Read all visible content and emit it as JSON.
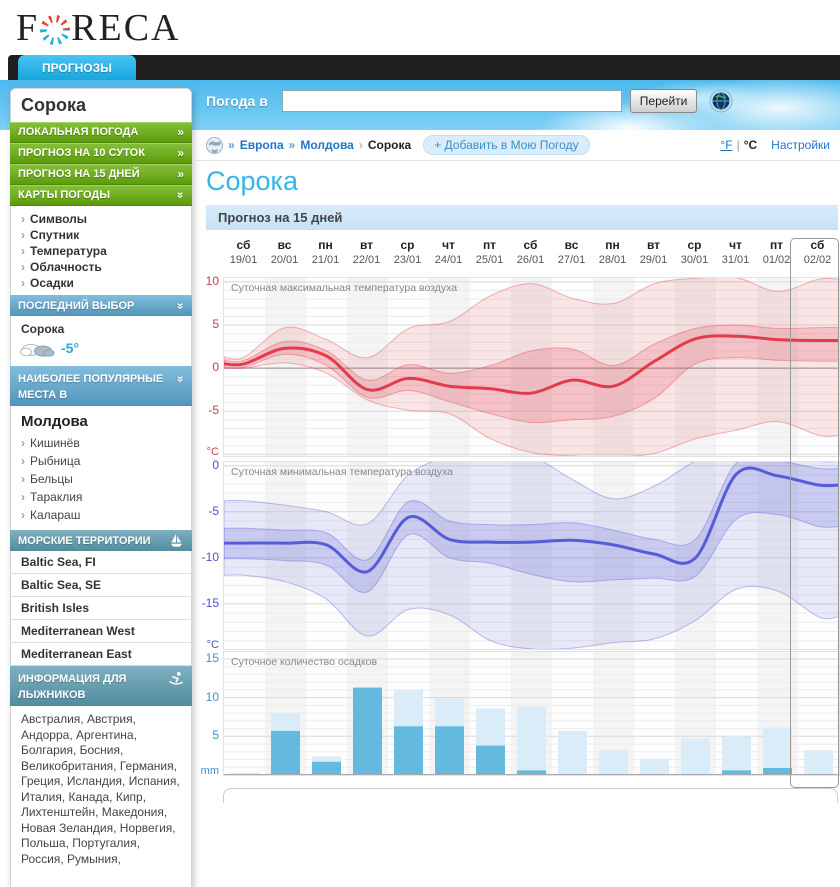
{
  "brand": {
    "logo_pre": "F",
    "logo_post": "RECA"
  },
  "nav": {
    "tab": "ПРОГНОЗЫ"
  },
  "search": {
    "label": "Погода в",
    "value": "",
    "button": "Перейти"
  },
  "breadcrumb": {
    "links": [
      "Европа",
      "Молдова"
    ],
    "current": "Сорока",
    "add_button": "+ Добавить в Мою Погоду"
  },
  "units": {
    "fahrenheit": "°F",
    "divider": "|",
    "celsius": "°C",
    "settings": "Настройки"
  },
  "page": {
    "title": "Сорока",
    "section": "Прогноз на 15 дней"
  },
  "days": {
    "names": [
      "сб",
      "вс",
      "пн",
      "вт",
      "ср",
      "чт",
      "пт",
      "сб",
      "вс",
      "пн",
      "вт",
      "ср",
      "чт",
      "пт",
      "сб"
    ],
    "dates": [
      "19/01",
      "20/01",
      "21/01",
      "22/01",
      "23/01",
      "24/01",
      "25/01",
      "26/01",
      "27/01",
      "28/01",
      "29/01",
      "30/01",
      "31/01",
      "01/02",
      "02/02"
    ]
  },
  "sidebar": {
    "city": "Сорока",
    "menu": [
      {
        "label": "ЛОКАЛЬНАЯ ПОГОДА",
        "state": "collapsed"
      },
      {
        "label": "ПРОГНОЗ НА 10 СУТОК",
        "state": "collapsed"
      },
      {
        "label": "ПРОГНОЗ НА 15 ДНЕЙ",
        "state": "collapsed"
      },
      {
        "label": "КАРТЫ ПОГОДЫ",
        "state": "expanded"
      }
    ],
    "map_links": [
      "Символы",
      "Спутник",
      "Температура",
      "Облачность",
      "Осадки"
    ],
    "last_choice": {
      "header": "ПОСЛЕДНИЙ ВЫБОР",
      "city": "Сорока",
      "temp": "-5°"
    },
    "popular": {
      "header": [
        "НАИБОЛЕЕ ПОПУЛЯРНЫЕ",
        "МЕСТА В"
      ],
      "region": "Молдова",
      "cities": [
        "Кишинёв",
        "Рыбница",
        "Бельцы",
        "Тараклия",
        "Калараш"
      ]
    },
    "marine": {
      "header": "МОРСКИЕ ТЕРРИТОРИИ",
      "areas": [
        "Baltic Sea, FI",
        "Baltic Sea, SE",
        "British Isles",
        "Mediterranean West",
        "Mediterranean East"
      ]
    },
    "ski": {
      "header": [
        "ИНФОРМАЦИЯ ДЛЯ",
        "ЛЫЖНИКОВ"
      ],
      "countries": "Австралия, Австрия, Андорра, Аргентина, Болгария, Босния, Великобритания, Германия, Греция, Исландия, Испания, Италия, Канада, Кипр, Лихтенштейн, Македония, Новая Зеландия, Норвегия, Польша, Португалия, Россия, Румыния,"
    }
  },
  "chart_data": [
    {
      "type": "area",
      "id": "tmax",
      "title": "Суточная максимальная температура воздуха",
      "unit": "°C",
      "color": "#e23c4c",
      "tick_color": "#cf3a45",
      "yticks": [
        10,
        5,
        0,
        -5
      ],
      "ylim": [
        -10.2,
        10.45
      ],
      "zero_line": true,
      "categories": [
        "19/01",
        "20/01",
        "21/01",
        "22/01",
        "23/01",
        "24/01",
        "25/01",
        "26/01",
        "27/01",
        "28/01",
        "29/01",
        "30/01",
        "31/01",
        "01/02",
        "02/02"
      ],
      "mean": [
        0.5,
        2.3,
        1.4,
        -2.5,
        -1.2,
        -2.1,
        -2.4,
        -2.9,
        -1.4,
        -2.1,
        0.8,
        3.4,
        3.7,
        3.3,
        3.2
      ],
      "inner_high": [
        0.9,
        3.1,
        2.0,
        -1.4,
        0.4,
        -0.6,
        0.3,
        2.0,
        2.2,
        0.3,
        2.8,
        4.6,
        5.0,
        4.6,
        4.7
      ],
      "inner_low": [
        0.1,
        1.6,
        0.3,
        -3.4,
        -2.6,
        -3.9,
        -5.3,
        -6.3,
        -6.0,
        -5.6,
        -3.5,
        0.5,
        1.2,
        0.9,
        0.8
      ],
      "outer_high": [
        1.3,
        4.7,
        3.3,
        1.2,
        4.6,
        5.4,
        8.4,
        9.8,
        8.1,
        7.5,
        9.8,
        10.4,
        10.5,
        8.9,
        10.3
      ],
      "outer_low": [
        0.0,
        0.6,
        -0.6,
        -3.7,
        -4.9,
        -5.3,
        -8.2,
        -9.8,
        -10.2,
        -10.3,
        -9.9,
        -8.2,
        -7.2,
        -6.2,
        -7.8
      ]
    },
    {
      "type": "area",
      "id": "tmin",
      "title": "Суточная минимальная температура воздуха",
      "unit": "°C",
      "color": "#555cd8",
      "tick_color": "#4a52c8",
      "yticks": [
        0,
        -5,
        -10,
        -15
      ],
      "ylim": [
        -19.9,
        0.4
      ],
      "zero_line": false,
      "categories": [
        "19/01",
        "20/01",
        "21/01",
        "22/01",
        "23/01",
        "24/01",
        "25/01",
        "26/01",
        "27/01",
        "28/01",
        "29/01",
        "30/01",
        "31/01",
        "01/02",
        "02/02"
      ],
      "mean": [
        -8.4,
        -8.4,
        -8.6,
        -11.5,
        -5.6,
        -8.0,
        -8.3,
        -8.3,
        -8.1,
        -8.6,
        -9.6,
        -10.0,
        -0.9,
        -1.1,
        -2.1
      ],
      "inner_high": [
        -6.8,
        -7.0,
        -7.3,
        -10.2,
        -3.9,
        -6.0,
        -6.4,
        -6.4,
        -6.2,
        -7.0,
        -8.0,
        -8.0,
        0.3,
        0.5,
        -0.3
      ],
      "inner_low": [
        -10.1,
        -10.3,
        -10.8,
        -13.7,
        -7.5,
        -10.0,
        -10.6,
        -11.8,
        -12.6,
        -12.4,
        -12.2,
        -12.0,
        -5.8,
        -5.3,
        -6.6
      ],
      "outer_high": [
        -3.8,
        -4.3,
        -5.0,
        -6.3,
        -1.0,
        1.0,
        1.5,
        1.0,
        -1.5,
        -3.6,
        -2.2,
        0.5,
        2.0,
        2.0,
        0.5
      ],
      "outer_low": [
        -11.9,
        -12.6,
        -14.5,
        -18.5,
        -15.6,
        -16.2,
        -19.0,
        -19.9,
        -19.8,
        -19.2,
        -18.8,
        -16.8,
        -13.4,
        -13.6,
        -16.4
      ]
    },
    {
      "type": "bar",
      "id": "precip",
      "title": "Суточное количество осадков",
      "unit": "mm",
      "tick_color": "#3a93c9",
      "yticks": [
        15,
        10,
        5
      ],
      "ylim": [
        0,
        15.9
      ],
      "categories": [
        "19/01",
        "20/01",
        "21/01",
        "22/01",
        "23/01",
        "24/01",
        "25/01",
        "26/01",
        "27/01",
        "28/01",
        "29/01",
        "30/01",
        "31/01",
        "01/02",
        "02/02"
      ],
      "series": [
        {
          "name": "possible",
          "color": "#d9ecf8",
          "values": [
            0.3,
            8.0,
            2.4,
            11.3,
            11.0,
            9.9,
            8.6,
            8.8,
            5.7,
            3.2,
            2.1,
            4.7,
            5.0,
            6.1,
            3.2
          ]
        },
        {
          "name": "expected",
          "color": "#63b9de",
          "values": [
            0,
            5.7,
            1.7,
            11.3,
            6.3,
            6.3,
            3.8,
            0.6,
            0,
            0,
            0,
            0,
            0.6,
            0.9,
            0
          ]
        }
      ]
    }
  ]
}
